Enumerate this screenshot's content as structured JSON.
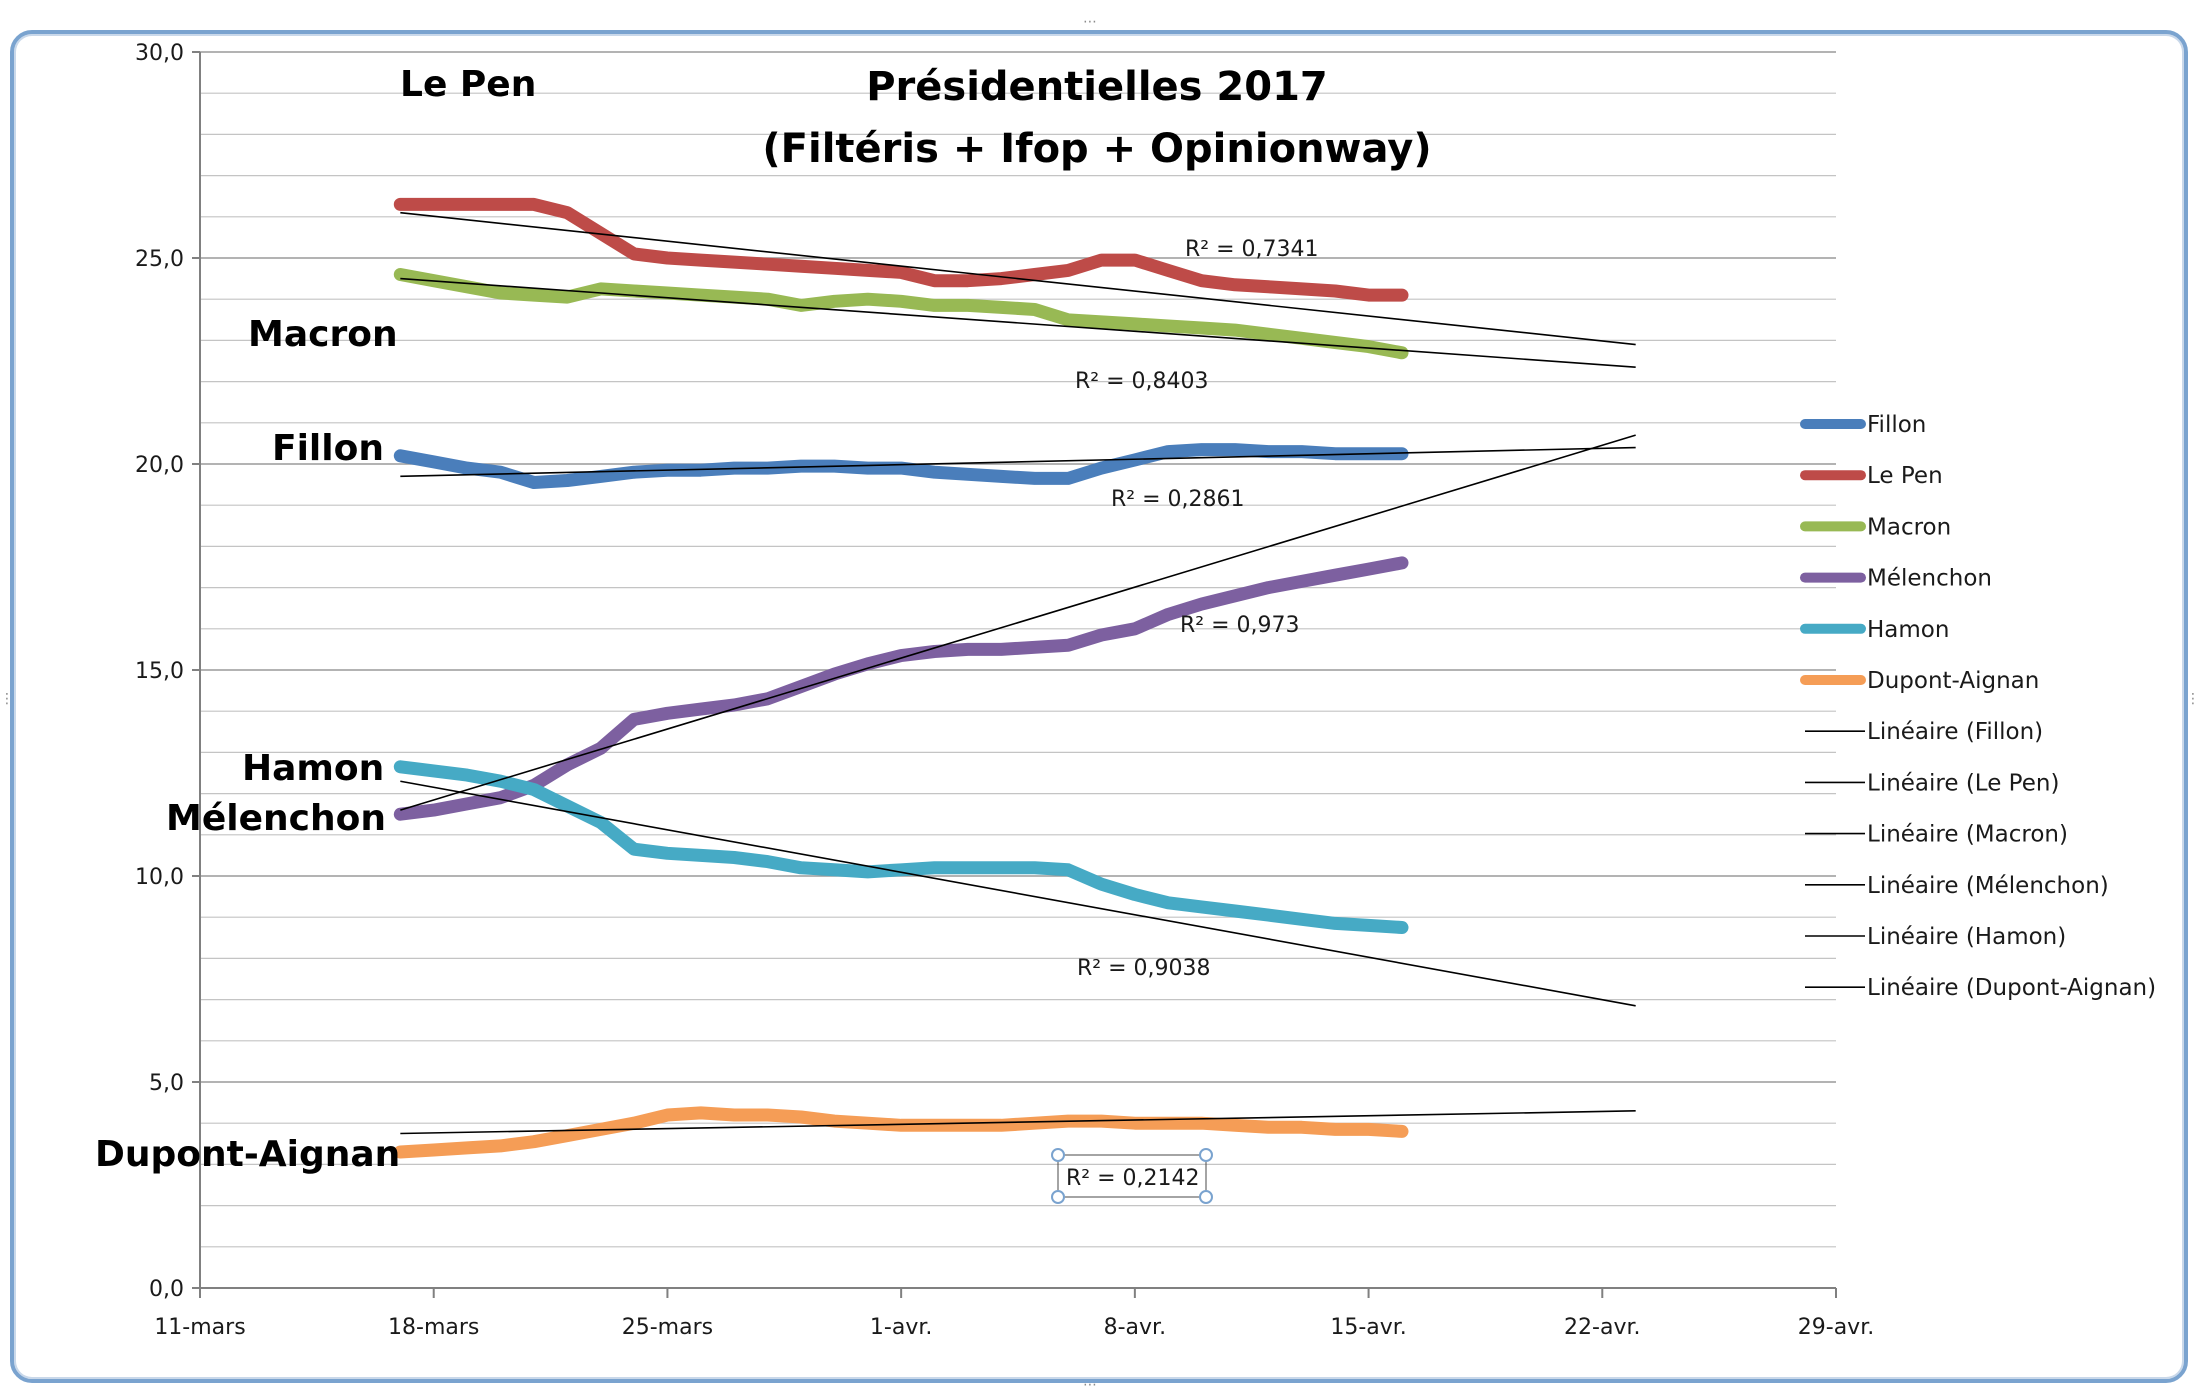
{
  "chart_data": {
    "type": "line",
    "title": [
      "Présidentielles 2017",
      "(Filtéris + Ifop + Opinionway)"
    ],
    "xlabel": "",
    "ylabel": "",
    "ylim": [
      0,
      30
    ],
    "y_ticks": [
      "0,0",
      "5,0",
      "10,0",
      "15,0",
      "20,0",
      "25,0",
      "30,0"
    ],
    "y_tick_values": [
      0,
      5,
      10,
      15,
      20,
      25,
      30
    ],
    "x_ticks": [
      "11-mars",
      "18-mars",
      "25-mars",
      "1-avr.",
      "8-avr.",
      "15-avr.",
      "22-avr.",
      "29-avr."
    ],
    "xlim_days": [
      0,
      49
    ],
    "grid": true,
    "series": [
      {
        "name": "Fillon",
        "color": "#4a7ebb",
        "x": [
          6,
          7,
          8,
          9,
          10,
          11,
          12,
          13,
          14,
          15,
          16,
          17,
          18,
          19,
          20,
          21,
          22,
          23,
          24,
          25,
          26,
          27,
          28,
          29,
          30,
          31,
          32,
          33,
          34,
          35,
          36
        ],
        "values": [
          20.2,
          20.05,
          19.9,
          19.8,
          19.55,
          19.6,
          19.7,
          19.8,
          19.85,
          19.85,
          19.9,
          19.9,
          19.95,
          19.95,
          19.9,
          19.9,
          19.8,
          19.75,
          19.7,
          19.65,
          19.65,
          19.9,
          20.1,
          20.3,
          20.35,
          20.35,
          20.3,
          20.3,
          20.25,
          20.25,
          20.25
        ]
      },
      {
        "name": "Le Pen",
        "color": "#be4b48",
        "x": [
          6,
          7,
          8,
          9,
          10,
          11,
          12,
          13,
          14,
          15,
          16,
          17,
          18,
          19,
          20,
          21,
          22,
          23,
          24,
          25,
          26,
          27,
          28,
          29,
          30,
          31,
          32,
          33,
          34,
          35,
          36
        ],
        "values": [
          26.3,
          26.3,
          26.3,
          26.3,
          26.3,
          26.1,
          25.6,
          25.1,
          25.0,
          24.95,
          24.9,
          24.85,
          24.8,
          24.75,
          24.7,
          24.65,
          24.45,
          24.45,
          24.5,
          24.6,
          24.7,
          24.95,
          24.95,
          24.7,
          24.45,
          24.35,
          24.3,
          24.25,
          24.2,
          24.1,
          24.1
        ]
      },
      {
        "name": "Macron",
        "color": "#98b954",
        "x": [
          6,
          7,
          8,
          9,
          10,
          11,
          12,
          13,
          14,
          15,
          16,
          17,
          18,
          19,
          20,
          21,
          22,
          23,
          24,
          25,
          26,
          27,
          28,
          29,
          30,
          31,
          32,
          33,
          34,
          35,
          36
        ],
        "values": [
          24.6,
          24.45,
          24.3,
          24.15,
          24.1,
          24.05,
          24.25,
          24.2,
          24.15,
          24.1,
          24.05,
          24.0,
          23.85,
          23.95,
          24.0,
          23.95,
          23.85,
          23.85,
          23.8,
          23.75,
          23.5,
          23.45,
          23.4,
          23.35,
          23.3,
          23.25,
          23.15,
          23.05,
          22.95,
          22.85,
          22.7
        ]
      },
      {
        "name": "Mélenchon",
        "color": "#7d60a0",
        "x": [
          6,
          7,
          8,
          9,
          10,
          11,
          12,
          13,
          14,
          15,
          16,
          17,
          18,
          19,
          20,
          21,
          22,
          23,
          24,
          25,
          26,
          27,
          28,
          29,
          30,
          31,
          32,
          33,
          34,
          35,
          36
        ],
        "values": [
          11.5,
          11.6,
          11.75,
          11.9,
          12.2,
          12.7,
          13.1,
          13.8,
          13.95,
          14.05,
          14.15,
          14.3,
          14.6,
          14.9,
          15.15,
          15.35,
          15.45,
          15.5,
          15.5,
          15.55,
          15.6,
          15.85,
          16.0,
          16.35,
          16.6,
          16.8,
          17.0,
          17.15,
          17.3,
          17.45,
          17.6
        ]
      },
      {
        "name": "Hamon",
        "color": "#46aac5",
        "x": [
          6,
          7,
          8,
          9,
          10,
          11,
          12,
          13,
          14,
          15,
          16,
          17,
          18,
          19,
          20,
          21,
          22,
          23,
          24,
          25,
          26,
          27,
          28,
          29,
          30,
          31,
          32,
          33,
          34,
          35,
          36
        ],
        "values": [
          12.65,
          12.55,
          12.45,
          12.3,
          12.1,
          11.7,
          11.3,
          10.65,
          10.55,
          10.5,
          10.45,
          10.35,
          10.2,
          10.15,
          10.1,
          10.15,
          10.2,
          10.2,
          10.2,
          10.2,
          10.15,
          9.8,
          9.55,
          9.35,
          9.25,
          9.15,
          9.05,
          8.95,
          8.85,
          8.8,
          8.75
        ]
      },
      {
        "name": "Dupont-Aignan",
        "color": "#f59d56",
        "x": [
          6,
          7,
          8,
          9,
          10,
          11,
          12,
          13,
          14,
          15,
          16,
          17,
          18,
          19,
          20,
          21,
          22,
          23,
          24,
          25,
          26,
          27,
          28,
          29,
          30,
          31,
          32,
          33,
          34,
          35,
          36
        ],
        "values": [
          3.3,
          3.35,
          3.4,
          3.45,
          3.55,
          3.7,
          3.85,
          4.0,
          4.2,
          4.25,
          4.2,
          4.2,
          4.15,
          4.05,
          4.0,
          3.95,
          3.95,
          3.95,
          3.95,
          4.0,
          4.05,
          4.05,
          4.0,
          4.0,
          4.0,
          3.95,
          3.9,
          3.9,
          3.85,
          3.85,
          3.8
        ]
      }
    ],
    "trendlines": [
      {
        "name": "Linéaire (Fillon)",
        "x": [
          6,
          43
        ],
        "values": [
          19.7,
          20.4
        ],
        "r2": "R² = 0,2861"
      },
      {
        "name": "Linéaire (Le Pen)",
        "x": [
          6,
          43
        ],
        "values": [
          26.1,
          22.9
        ],
        "r2": "R² = 0,7341"
      },
      {
        "name": "Linéaire (Macron)",
        "x": [
          6,
          43
        ],
        "values": [
          24.5,
          22.35
        ],
        "r2": "R² = 0,8403"
      },
      {
        "name": "Linéaire (Mélenchon)",
        "x": [
          6,
          43
        ],
        "values": [
          11.6,
          20.7
        ],
        "r2": "R² = 0,973"
      },
      {
        "name": "Linéaire (Hamon)",
        "x": [
          6,
          43
        ],
        "values": [
          12.3,
          6.85
        ],
        "r2": "R² = 0,9038"
      },
      {
        "name": "Linéaire (Dupont-Aignan)",
        "x": [
          6,
          43
        ],
        "values": [
          3.75,
          4.3
        ],
        "r2": "R² = 0,2142"
      }
    ],
    "candidate_labels": [
      "Le Pen",
      "Macron",
      "Fillon",
      "Hamon",
      "Mélenchon",
      "Dupont-Aignan"
    ],
    "legend": [
      "Fillon",
      "Le Pen",
      "Macron",
      "Mélenchon",
      "Hamon",
      "Dupont-Aignan",
      "Linéaire (Fillon)",
      "Linéaire (Le Pen)",
      "Linéaire (Macron)",
      "Linéaire (Mélenchon)",
      "Linéaire (Hamon)",
      "Linéaire (Dupont-Aignan)"
    ],
    "legend_position": "right"
  }
}
